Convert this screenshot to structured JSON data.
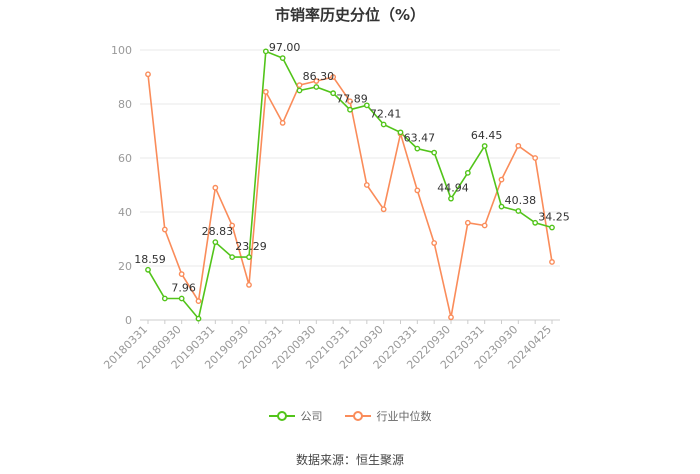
{
  "chart_data": {
    "type": "line",
    "title": "市销率历史分位（%）",
    "xlabel": "",
    "ylabel": "",
    "ylim": [
      0,
      100
    ],
    "yticks": [
      0,
      20,
      40,
      60,
      80,
      100
    ],
    "grid": true,
    "legend_position": "bottom",
    "x": [
      "20180331",
      "20180630",
      "20180930",
      "20181231",
      "20190331",
      "20190630",
      "20190930",
      "20191231",
      "20200331",
      "20200630",
      "20200930",
      "20201231",
      "20210331",
      "20210630",
      "20210930",
      "20211231",
      "20220331",
      "20220630",
      "20220930",
      "20221231",
      "20230331",
      "20230630",
      "20230930",
      "20231231",
      "20240425"
    ],
    "x_tick_labels": [
      "20180331",
      "20180930",
      "20190331",
      "20190930",
      "20200331",
      "20200930",
      "20210331",
      "20210930",
      "20220331",
      "20220930",
      "20230331",
      "20230930",
      "20240425"
    ],
    "series": [
      {
        "name": "公司",
        "color": "#52c41a",
        "values": [
          18.59,
          7.96,
          7.96,
          0.5,
          28.83,
          23.29,
          23.29,
          99.5,
          97.0,
          85.0,
          86.3,
          84.0,
          77.89,
          79.5,
          72.41,
          69.5,
          63.47,
          62.0,
          44.94,
          54.5,
          64.45,
          42.0,
          40.38,
          36.0,
          34.25
        ],
        "data_labels": [
          {
            "index": 0,
            "text": "18.59"
          },
          {
            "index": 2,
            "text": "7.96"
          },
          {
            "index": 4,
            "text": "28.83"
          },
          {
            "index": 6,
            "text": "23.29"
          },
          {
            "index": 8,
            "text": "97.00"
          },
          {
            "index": 10,
            "text": "86.30"
          },
          {
            "index": 12,
            "text": "77.89"
          },
          {
            "index": 14,
            "text": "72.41"
          },
          {
            "index": 16,
            "text": "63.47"
          },
          {
            "index": 18,
            "text": "44.94"
          },
          {
            "index": 20,
            "text": "64.45"
          },
          {
            "index": 22,
            "text": "40.38"
          },
          {
            "index": 24,
            "text": "34.25"
          }
        ]
      },
      {
        "name": "行业中位数",
        "color": "#fa8c5a",
        "values": [
          91.0,
          33.5,
          17.0,
          7.0,
          49.0,
          35.0,
          13.0,
          84.5,
          73.0,
          87.0,
          88.5,
          90.0,
          81.0,
          50.0,
          41.0,
          69.0,
          48.0,
          28.5,
          1.0,
          36.0,
          35.0,
          52.0,
          64.5,
          60.0,
          21.5
        ]
      }
    ]
  },
  "legend": {
    "items": [
      {
        "label": "公司",
        "color": "#52c41a"
      },
      {
        "label": "行业中位数",
        "color": "#fa8c5a"
      }
    ]
  },
  "source_note": "数据来源：恒生聚源"
}
